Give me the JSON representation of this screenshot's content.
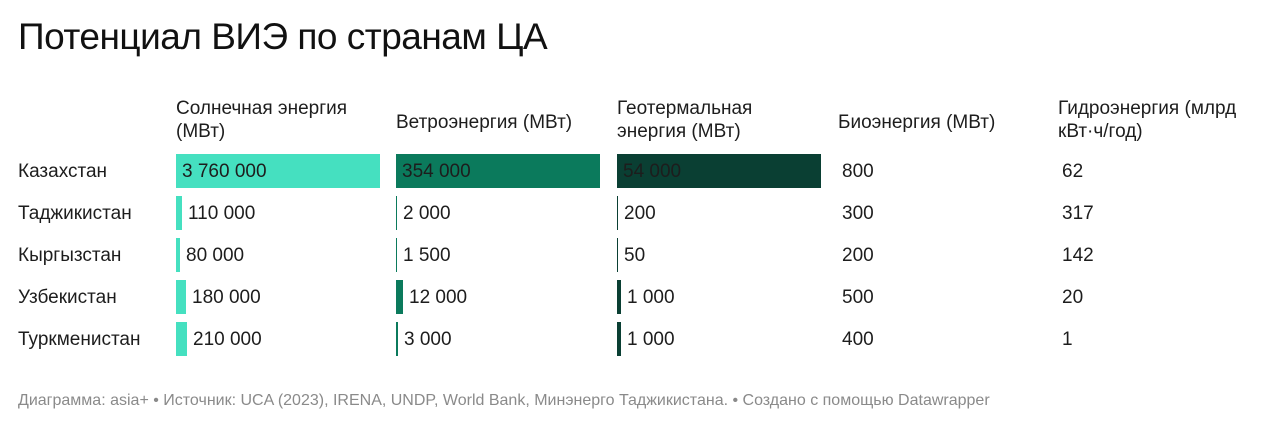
{
  "title": "Потенциал ВИЭ по странам ЦА",
  "columns": [
    {
      "label": "Солнечная энергия\n(МВт)"
    },
    {
      "label": "Ветроэнергия (МВт)"
    },
    {
      "label": "Геотермальная\nэнергия (МВт)"
    },
    {
      "label": "Биоэнергия (МВт)"
    },
    {
      "label": "Гидроэнергия (млрд\nкВт·ч/год)"
    }
  ],
  "rows": [
    {
      "country": "Казахстан",
      "values": [
        "3 760 000",
        "354 000",
        "54 000",
        "800",
        "62"
      ]
    },
    {
      "country": "Таджикистан",
      "values": [
        "110 000",
        "2 000",
        "200",
        "300",
        "317"
      ]
    },
    {
      "country": "Кыргызстан",
      "values": [
        "80 000",
        "1 500",
        "50",
        "200",
        "142"
      ]
    },
    {
      "country": "Узбекистан",
      "values": [
        "180 000",
        "12 000",
        "1 000",
        "500",
        "20"
      ]
    },
    {
      "country": "Туркменистан",
      "values": [
        "210 000",
        "3 000",
        "1 000",
        "400",
        "1"
      ]
    }
  ],
  "chart_data": {
    "type": "table",
    "title": "Потенциал ВИЭ по странам ЦА",
    "categories": [
      "Казахстан",
      "Таджикистан",
      "Кыргызстан",
      "Узбекистан",
      "Туркменистан"
    ],
    "series": [
      {
        "name": "Солнечная энергия (МВт)",
        "values": [
          3760000,
          110000,
          80000,
          180000,
          210000
        ],
        "bar": true,
        "color": "#45e0c0"
      },
      {
        "name": "Ветроэнергия (МВт)",
        "values": [
          354000,
          2000,
          1500,
          12000,
          3000
        ],
        "bar": true,
        "color": "#0b7a5c"
      },
      {
        "name": "Геотермальная энергия (МВт)",
        "values": [
          54000,
          200,
          50,
          1000,
          1000
        ],
        "bar": true,
        "color": "#0a3f33"
      },
      {
        "name": "Биоэнергия (МВт)",
        "values": [
          800,
          300,
          200,
          500,
          400
        ],
        "bar": false
      },
      {
        "name": "Гидроэнергия (млрд кВт·ч/год)",
        "values": [
          62,
          317,
          142,
          20,
          1
        ],
        "bar": false
      }
    ]
  },
  "source": "Диаграмма: asia+ • Источник: UCA (2023), IRENA, UNDP, World Bank, Минэнерго Таджикистана. • Создано с помощью Datawrapper"
}
